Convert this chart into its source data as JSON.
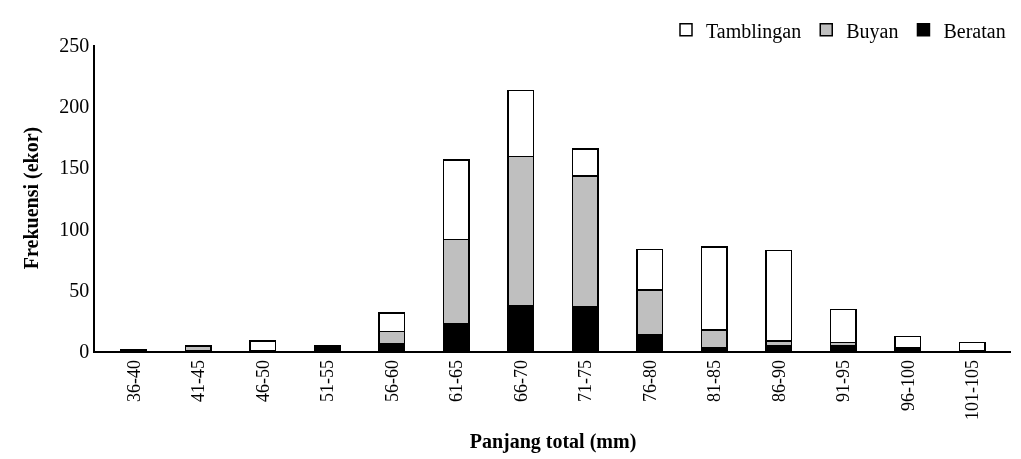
{
  "chart_data": {
    "type": "bar",
    "stacked": true,
    "xlabel": "Panjang total (mm)",
    "ylabel": "Frekuensi (ekor)",
    "categories": [
      "36-40",
      "41-45",
      "46-50",
      "51-55",
      "56-60",
      "61-65",
      "66-70",
      "71-75",
      "76-80",
      "81-85",
      "86-90",
      "91-95",
      "96-100",
      "101-105"
    ],
    "series": [
      {
        "name": "Beratan",
        "color": "#000000",
        "values": [
          1,
          null,
          null,
          4,
          6,
          22,
          37,
          36,
          13,
          3,
          4,
          4,
          3,
          null
        ]
      },
      {
        "name": "Buyan",
        "color": "#bfbfbf",
        "values": [
          null,
          4,
          null,
          null,
          10,
          69,
          122,
          107,
          37,
          14,
          4,
          3,
          null,
          null
        ]
      },
      {
        "name": "Tamblingan",
        "color": "#ffffff",
        "values": [
          null,
          null,
          8,
          null,
          15,
          65,
          54,
          22,
          33,
          68,
          74,
          27,
          9,
          7
        ]
      }
    ],
    "ylim": [
      0,
      250
    ],
    "yticks": [
      0,
      50,
      100,
      150,
      200,
      250
    ],
    "legend": "top right"
  }
}
